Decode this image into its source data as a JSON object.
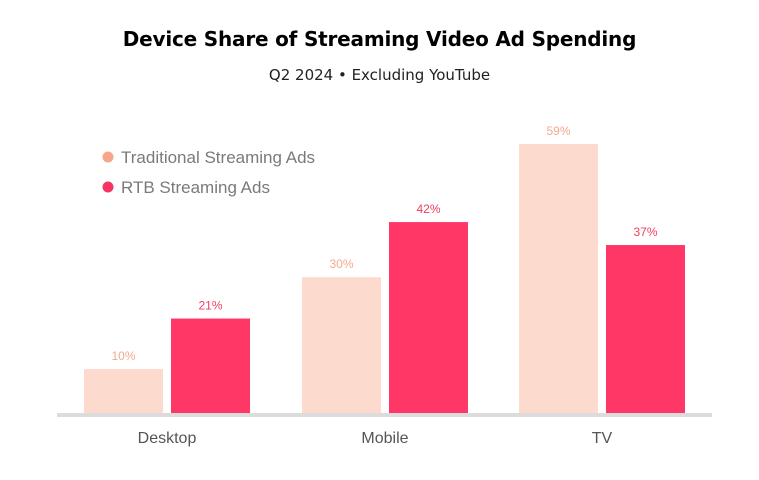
{
  "chart_data": {
    "type": "bar",
    "title": "Device Share of Streaming Video Ad Spending",
    "subtitle": "Q2 2024 • Excluding YouTube",
    "categories": [
      "Desktop",
      "Mobile",
      "TV"
    ],
    "series": [
      {
        "name": "Traditional Streaming Ads",
        "values": [
          10,
          30,
          59
        ],
        "labels": [
          "10%",
          "30%",
          "59%"
        ],
        "color": "#FDDACE",
        "label_color": "#F5A98C",
        "marker_color": "#F8A68A"
      },
      {
        "name": "RTB Streaming Ads",
        "values": [
          21,
          42,
          37
        ],
        "labels": [
          "21%",
          "42%",
          "37%"
        ],
        "color": "#FF3767",
        "label_color": "#F0405F",
        "marker_color": "#F53463"
      }
    ],
    "xlabel": "",
    "ylabel": "",
    "ylim": [
      0,
      59
    ],
    "unit": "%",
    "grid": false,
    "legend_position": "top-left"
  }
}
